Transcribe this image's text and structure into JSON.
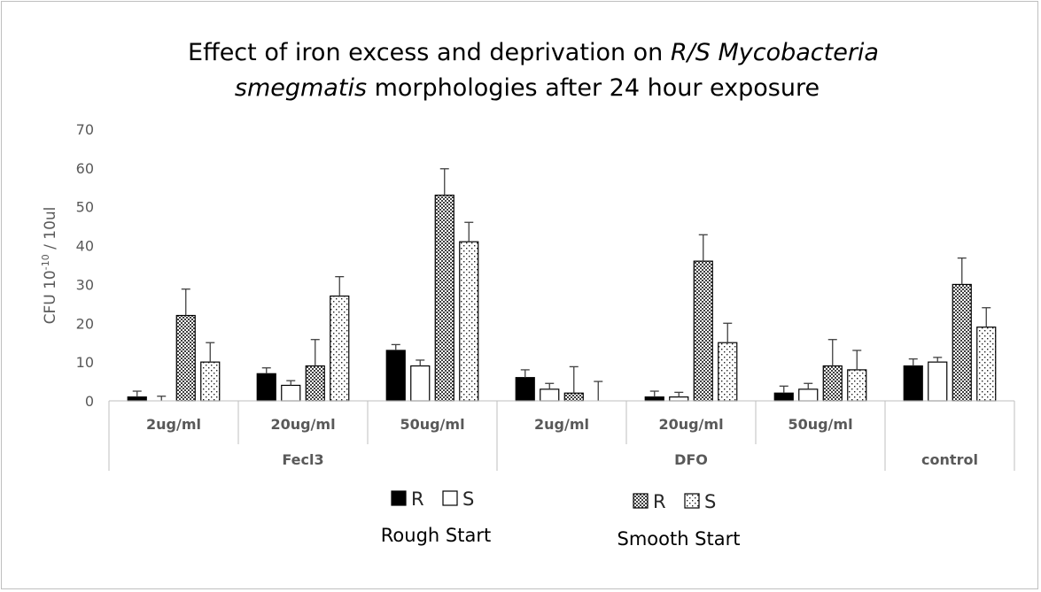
{
  "chart_data": {
    "type": "bar",
    "title_line1_prefix": "Effect of iron excess and deprivation on ",
    "title_line1_italic": "R/S Mycobacteria",
    "title_line2_italic": "smegmatis",
    "title_line2_rest": " morphologies after 24 hour exposure",
    "ylabel_main": "CFU 10",
    "ylabel_sup": "-10",
    "ylabel_tail": " / 10ul",
    "ylim": [
      0,
      70
    ],
    "yticks": [
      "0",
      "10",
      "20",
      "30",
      "40",
      "50",
      "60",
      "70"
    ],
    "grid": false,
    "categories": [
      {
        "label": "2ug/ml",
        "group": "Fecl3"
      },
      {
        "label": "20ug/ml",
        "group": "Fecl3"
      },
      {
        "label": "50ug/ml",
        "group": "Fecl3"
      },
      {
        "label": "2ug/ml",
        "group": "DFO"
      },
      {
        "label": "20ug/ml",
        "group": "DFO"
      },
      {
        "label": "50ug/ml",
        "group": "DFO"
      },
      {
        "label": "",
        "group": "control"
      }
    ],
    "groups": [
      {
        "label": "Fecl3",
        "span": 3
      },
      {
        "label": "DFO",
        "span": 3
      },
      {
        "label": "control",
        "span": 1
      }
    ],
    "series": [
      {
        "name": "R",
        "start": "Rough Start",
        "fill": "solid",
        "values": [
          1,
          7,
          13,
          6,
          1,
          2,
          9
        ],
        "errors": [
          1.5,
          1.5,
          1.5,
          2,
          1.5,
          1.8,
          1.8
        ]
      },
      {
        "name": "S",
        "start": "Rough Start",
        "fill": "white",
        "values": [
          0,
          4,
          9,
          3,
          1,
          3,
          10
        ],
        "errors": [
          1.2,
          1.2,
          1.5,
          1.5,
          1.2,
          1.5,
          1.2
        ]
      },
      {
        "name": "R",
        "start": "Smooth Start",
        "fill": "checker",
        "values": [
          22,
          9,
          53,
          2,
          36,
          9,
          30
        ],
        "errors": [
          6.8,
          6.8,
          6.8,
          6.8,
          6.8,
          6.8,
          6.8
        ]
      },
      {
        "name": "S",
        "start": "Smooth Start",
        "fill": "dots",
        "values": [
          10,
          27,
          41,
          0,
          15,
          8,
          19
        ],
        "errors": [
          5,
          5,
          5,
          5,
          5,
          5,
          5
        ]
      }
    ],
    "legend": {
      "placement": "bottom",
      "groups": [
        {
          "label": "Rough Start",
          "items": [
            "R",
            "S"
          ]
        },
        {
          "label": "Smooth Start",
          "items": [
            "R",
            "S"
          ]
        }
      ]
    }
  }
}
